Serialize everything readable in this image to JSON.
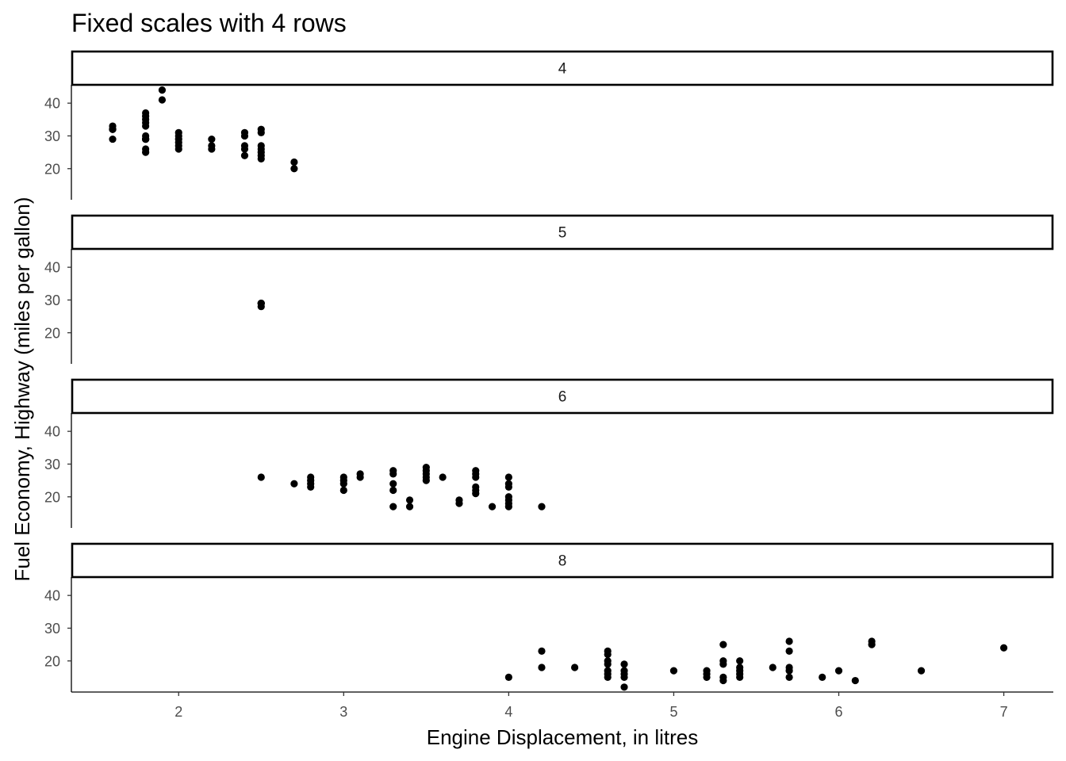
{
  "chart_data": {
    "type": "scatter",
    "title": "Fixed scales with 4 rows",
    "xlabel": "Engine Displacement, in litres",
    "ylabel": "Fuel Economy, Highway (miles per gallon)",
    "xlim": [
      1.35,
      7.3
    ],
    "ylim": [
      10.5,
      45.6
    ],
    "x_ticks": [
      2,
      3,
      4,
      5,
      6,
      7
    ],
    "y_ticks": [
      20,
      30,
      40
    ],
    "facet_variable": "cyl",
    "grid": false,
    "point_color": "#000000",
    "panels": [
      {
        "label": "4",
        "points": [
          [
            1.6,
            33
          ],
          [
            1.6,
            32
          ],
          [
            1.6,
            32
          ],
          [
            1.6,
            32
          ],
          [
            1.6,
            29
          ],
          [
            1.8,
            29
          ],
          [
            1.8,
            29
          ],
          [
            1.8,
            26
          ],
          [
            1.8,
            25
          ],
          [
            1.8,
            36
          ],
          [
            1.8,
            35
          ],
          [
            1.8,
            37
          ],
          [
            1.8,
            34
          ],
          [
            1.8,
            33
          ],
          [
            1.8,
            30
          ],
          [
            1.8,
            29
          ],
          [
            1.9,
            44
          ],
          [
            1.9,
            41
          ],
          [
            2.0,
            31
          ],
          [
            2.0,
            30
          ],
          [
            2.0,
            28
          ],
          [
            2.0,
            26
          ],
          [
            2.0,
            29
          ],
          [
            2.0,
            27
          ],
          [
            2.2,
            29
          ],
          [
            2.2,
            27
          ],
          [
            2.2,
            26
          ],
          [
            2.4,
            31
          ],
          [
            2.4,
            30
          ],
          [
            2.4,
            27
          ],
          [
            2.4,
            26
          ],
          [
            2.4,
            24
          ],
          [
            2.5,
            32
          ],
          [
            2.5,
            31
          ],
          [
            2.5,
            27
          ],
          [
            2.5,
            26
          ],
          [
            2.5,
            25
          ],
          [
            2.5,
            24
          ],
          [
            2.5,
            23
          ],
          [
            2.7,
            22
          ],
          [
            2.7,
            20
          ]
        ]
      },
      {
        "label": "5",
        "points": [
          [
            2.5,
            29
          ],
          [
            2.5,
            29
          ],
          [
            2.5,
            28
          ],
          [
            2.5,
            29
          ]
        ]
      },
      {
        "label": "6",
        "points": [
          [
            2.5,
            26
          ],
          [
            2.7,
            24
          ],
          [
            2.8,
            26
          ],
          [
            2.8,
            25
          ],
          [
            2.8,
            24
          ],
          [
            2.8,
            23
          ],
          [
            3.0,
            26
          ],
          [
            3.0,
            25
          ],
          [
            3.0,
            24
          ],
          [
            3.0,
            22
          ],
          [
            3.1,
            27
          ],
          [
            3.1,
            26
          ],
          [
            3.3,
            28
          ],
          [
            3.3,
            27
          ],
          [
            3.3,
            24
          ],
          [
            3.3,
            22
          ],
          [
            3.3,
            17
          ],
          [
            3.4,
            19
          ],
          [
            3.4,
            17
          ],
          [
            3.5,
            29
          ],
          [
            3.5,
            28
          ],
          [
            3.5,
            27
          ],
          [
            3.5,
            26
          ],
          [
            3.5,
            25
          ],
          [
            3.6,
            26
          ],
          [
            3.7,
            19
          ],
          [
            3.7,
            18
          ],
          [
            3.8,
            28
          ],
          [
            3.8,
            27
          ],
          [
            3.8,
            26
          ],
          [
            3.8,
            23
          ],
          [
            3.8,
            22
          ],
          [
            3.8,
            21
          ],
          [
            3.9,
            17
          ],
          [
            4.0,
            26
          ],
          [
            4.0,
            24
          ],
          [
            4.0,
            23
          ],
          [
            4.0,
            20
          ],
          [
            4.0,
            19
          ],
          [
            4.0,
            18
          ],
          [
            4.0,
            17
          ],
          [
            4.2,
            17
          ]
        ]
      },
      {
        "label": "8",
        "points": [
          [
            4.0,
            15
          ],
          [
            4.2,
            23
          ],
          [
            4.2,
            18
          ],
          [
            4.4,
            18
          ],
          [
            4.6,
            23
          ],
          [
            4.6,
            22
          ],
          [
            4.6,
            20
          ],
          [
            4.6,
            19
          ],
          [
            4.6,
            17
          ],
          [
            4.6,
            16
          ],
          [
            4.6,
            15
          ],
          [
            4.7,
            19
          ],
          [
            4.7,
            17
          ],
          [
            4.7,
            16
          ],
          [
            4.7,
            15
          ],
          [
            4.7,
            12
          ],
          [
            5.0,
            17
          ],
          [
            5.2,
            17
          ],
          [
            5.2,
            16
          ],
          [
            5.2,
            15
          ],
          [
            5.3,
            25
          ],
          [
            5.3,
            20
          ],
          [
            5.3,
            19
          ],
          [
            5.3,
            15
          ],
          [
            5.3,
            14
          ],
          [
            5.4,
            20
          ],
          [
            5.4,
            18
          ],
          [
            5.4,
            17
          ],
          [
            5.4,
            16
          ],
          [
            5.4,
            15
          ],
          [
            5.6,
            18
          ],
          [
            5.7,
            26
          ],
          [
            5.7,
            23
          ],
          [
            5.7,
            18
          ],
          [
            5.7,
            17
          ],
          [
            5.7,
            15
          ],
          [
            5.9,
            15
          ],
          [
            6.0,
            17
          ],
          [
            6.1,
            14
          ],
          [
            6.2,
            26
          ],
          [
            6.2,
            25
          ],
          [
            6.5,
            17
          ],
          [
            7.0,
            24
          ]
        ]
      }
    ]
  }
}
